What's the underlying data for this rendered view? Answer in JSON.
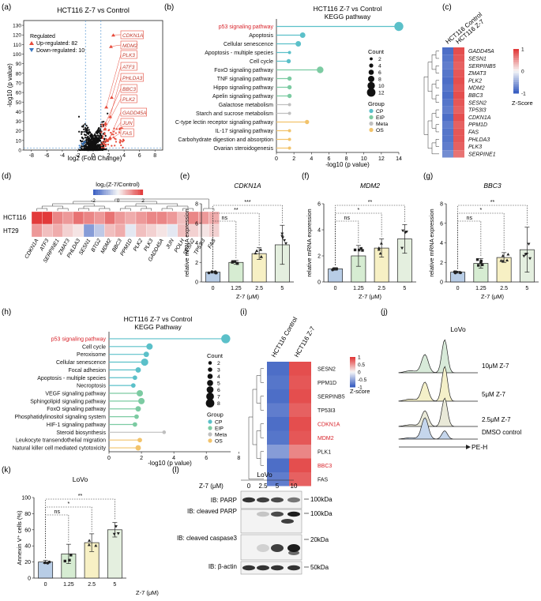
{
  "panel_letters": {
    "a": "(a)",
    "b": "(b)",
    "c": "(c)",
    "d": "(d)",
    "e": "(e)",
    "f": "(f)",
    "g": "(g)",
    "h": "(h)",
    "i": "(i)",
    "j": "(j)",
    "k": "(k)",
    "l": "(l)"
  },
  "colors": {
    "up": "#e74c3c",
    "down": "#3a78c2",
    "CP": "#5bc0c9",
    "EIP": "#7ccba2",
    "Meta": "#bfbfbf",
    "OS": "#f2c36b",
    "red_label": "#d8232a"
  },
  "volcano": {
    "title": "HCT116 Z-7 vs Control",
    "xlabel": "log2 (Fold Change)",
    "ylabel": "-log10 (p value)",
    "legend_title": "Regulated",
    "legend_up": "Up-regulated: 82",
    "legend_down": "Down-regulated: 10",
    "xticks": [
      "-8",
      "-6",
      "-4",
      "-2",
      "0",
      "2",
      "4",
      "6",
      "8"
    ],
    "yticks": [
      "0",
      "10",
      "20",
      "30",
      "40",
      "50",
      "60",
      "70",
      "80",
      "90",
      "100",
      "110",
      "120",
      "130"
    ],
    "genes": [
      "CDKN1A",
      "MDM2",
      "PLK3",
      "ATF3",
      "PHLDA3",
      "BBC3",
      "PLK2",
      "GADD45A",
      "JUN",
      "FAS"
    ]
  },
  "kegg_b": {
    "title": "HCT116 Z-7 vs Control",
    "subtitle": "KEGG pathway",
    "xlabel": "-log10 (p value)",
    "xticks": [
      "0",
      "2",
      "4",
      "6",
      "8",
      "10",
      "12",
      "14"
    ],
    "pathways": [
      "p53 signaling pathway",
      "Apoptosis",
      "Cellular senescence",
      "Apoptosis - multiple species",
      "Cell cycle",
      "FoxO signaling pathway",
      "TNF signaling pathway",
      "Hippo signaling pathway",
      "Apelin signaling pathway",
      "Galactose metabolism",
      "Starch and sucrose metabolism",
      "C-type lectin receptor signaling pathway",
      "IL-17 signaling pathway",
      "Carbohydrate digestion and absorption",
      "Ovarian steroidogenesis"
    ],
    "values": [
      14.0,
      3.0,
      2.5,
      1.5,
      1.4,
      5.0,
      1.5,
      1.5,
      1.5,
      1.5,
      1.5,
      3.5,
      1.5,
      1.5,
      1.5
    ],
    "counts": [
      12,
      6,
      6,
      2,
      4,
      8,
      4,
      4,
      4,
      2,
      2,
      4,
      2,
      2,
      2
    ],
    "groups": [
      "CP",
      "CP",
      "CP",
      "CP",
      "CP",
      "EIP",
      "EIP",
      "EIP",
      "EIP",
      "Meta",
      "Meta",
      "OS",
      "OS",
      "OS",
      "OS"
    ],
    "count_title": "Count",
    "count_items": [
      "2",
      "4",
      "6",
      "8",
      "10",
      "12"
    ],
    "group_title": "Group",
    "group_items": [
      "CP",
      "EIP",
      "Meta",
      "OS"
    ]
  },
  "heat_c": {
    "columns": [
      "HCT116 Control",
      "HCT116 Z-7"
    ],
    "genes": [
      "GADD45A",
      "SESN1",
      "SERPINB5",
      "ZMAT3",
      "PLK2",
      "MDM2",
      "BBC3",
      "SESN2",
      "TP53I3",
      "CDKN1A",
      "PPM1D",
      "FAS",
      "PHLDA3",
      "PLK3",
      "SERPINE1"
    ],
    "scale_ticks": [
      "1",
      "0",
      "-1"
    ],
    "scale_label": "Z-Score"
  },
  "heat_d": {
    "legend_label": "log₂(Z-7/Control)",
    "legend_ticks": [
      "-2",
      "0",
      "2"
    ],
    "rows": [
      "HCT116",
      "HT29"
    ],
    "genes": [
      "CDKN1A",
      "ATF3",
      "SERPINE1",
      "ZMAT3",
      "PHLDA3",
      "SESN1",
      "BTG2",
      "MDM2",
      "BBC3",
      "PPM1D",
      "PLK2",
      "PLK3",
      "GADD45A",
      "JUN",
      "POLH",
      "SESN2",
      "TP53I3",
      "FAS"
    ],
    "hct116": [
      1.2,
      1.0,
      0.6,
      0.5,
      0.7,
      0.6,
      0.5,
      0.7,
      0.5,
      0.4,
      0.5,
      0.6,
      0.6,
      0.5,
      0.3,
      0.6,
      0.5,
      0.4
    ],
    "ht29": [
      0.5,
      0.3,
      0.4,
      0.2,
      0.1,
      -0.6,
      -0.3,
      0.3,
      0.4,
      -0.1,
      0.3,
      0.2,
      0.1,
      -0.1,
      0.3,
      0.2,
      0.1,
      0.2
    ]
  },
  "bar_e": {
    "gene": "CDKN1A",
    "ylabel": "relative mRNA expression",
    "xlabel": "Z-7 (μM)",
    "categories": [
      "0",
      "1.25",
      "2.5",
      "5"
    ],
    "values": [
      1.0,
      2.0,
      2.9,
      3.8
    ],
    "errors": [
      0.1,
      0.2,
      0.6,
      2.0
    ],
    "ylim": [
      0,
      8
    ],
    "yticks": [
      "0",
      "2",
      "4",
      "6",
      "8"
    ],
    "sig": [
      "ns",
      "**",
      "***"
    ]
  },
  "bar_f": {
    "gene": "MDM2",
    "ylabel": "relative mRNA expression",
    "xlabel": "Z-7 (μM)",
    "categories": [
      "0",
      "1.25",
      "2.5",
      "5"
    ],
    "values": [
      1.0,
      2.0,
      2.6,
      3.3
    ],
    "errors": [
      0.1,
      0.8,
      0.7,
      1.1
    ],
    "ylim": [
      0,
      6
    ],
    "yticks": [
      "0",
      "2",
      "4",
      "6"
    ],
    "sig": [
      "ns",
      "*",
      "**"
    ]
  },
  "bar_g": {
    "gene": "BBC3",
    "ylabel": "relative mRNA expression",
    "xlabel": "Z-7 (μM)",
    "categories": [
      "0",
      "1.25",
      "2.5",
      "5"
    ],
    "values": [
      1.0,
      1.9,
      2.5,
      3.3
    ],
    "errors": [
      0.1,
      0.5,
      0.5,
      2.3
    ],
    "ylim": [
      0,
      8
    ],
    "yticks": [
      "0",
      "2",
      "4",
      "6",
      "8"
    ],
    "sig": [
      "ns",
      "*",
      "**"
    ]
  },
  "kegg_h": {
    "title": "HCT116 Z-7 vs Control",
    "subtitle": "KEGG Pathway",
    "xlabel": "-log10 (p value)",
    "xticks": [
      "0",
      "2",
      "4",
      "6",
      "8"
    ],
    "pathways": [
      "p53 signaling pathway",
      "Cell cycle",
      "Peroxisome",
      "Cellular senescence",
      "Focal adhesion",
      "Apoptosis - multiple species",
      "Necroptosis",
      "VEGF signaling pathway",
      "Sphingolipid signaling pathway",
      "FoxO signaling pathway",
      "Phosphatidylinositol signaling system",
      "HIF-1 signaling pathway",
      "Steroid biosynthesis",
      "Leukocyte transendothelial migration",
      "Natural killer cell mediated cytotoxicity"
    ],
    "values": [
      7.2,
      2.5,
      2.3,
      2.2,
      1.8,
      1.6,
      1.5,
      1.9,
      2.0,
      1.8,
      1.7,
      1.6,
      3.4,
      1.9,
      1.8
    ],
    "counts": [
      8,
      5,
      4,
      6,
      4,
      3,
      3,
      5,
      5,
      4,
      3,
      3,
      2,
      3,
      4
    ],
    "groups": [
      "CP",
      "CP",
      "CP",
      "CP",
      "CP",
      "CP",
      "CP",
      "EIP",
      "EIP",
      "EIP",
      "EIP",
      "EIP",
      "Meta",
      "OS",
      "OS"
    ],
    "count_title": "Count",
    "count_items": [
      "2",
      "3",
      "4",
      "5",
      "6",
      "7",
      "8"
    ],
    "group_title": "Group",
    "group_items": [
      "CP",
      "EIP",
      "Meta",
      "OS"
    ]
  },
  "heat_i": {
    "columns": [
      "HCT116 Control",
      "HCT116 Z-7"
    ],
    "genes": [
      "SESN2",
      "PPM1D",
      "SERPINB5",
      "TP53I3",
      "CDKN1A",
      "MDM2",
      "PLK1",
      "BBC3",
      "FAS"
    ],
    "red_genes": [
      "CDKN1A",
      "MDM2",
      "BBC3"
    ],
    "scale_ticks": [
      "1",
      "0.5",
      "0",
      "-0.5",
      "-1"
    ],
    "scale_label": "Z-score"
  },
  "flow_j": {
    "title": "LoVo",
    "labels": [
      "10μM Z-7",
      "5μM Z-7",
      "2.5μM Z-7",
      "DMSO control"
    ],
    "xlabel": "PE-H"
  },
  "bar_k": {
    "title": "LoVo",
    "ylabel": "Annexin V⁺ cells (%)",
    "xlabel": "Z-7 (μM)",
    "categories": [
      "0",
      "1.25",
      "2.5",
      "5"
    ],
    "values": [
      20,
      30,
      44,
      60
    ],
    "errors": [
      2,
      12,
      11,
      9
    ],
    "ylim": [
      0,
      100
    ],
    "yticks": [
      "0",
      "20",
      "40",
      "60",
      "80",
      "100"
    ],
    "sig": [
      "ns",
      "*",
      "**"
    ]
  },
  "blot_l": {
    "title": "LoVo",
    "dose_label": "Z-7 (μM)",
    "doses": [
      "0",
      "2.5",
      "5",
      "10"
    ],
    "rows": [
      "IB: PARP",
      "IB: cleaved PARP",
      "IB: cleaved caspase3",
      "IB: β-actin"
    ],
    "markers": [
      "100kDa",
      "100kDa",
      "20kDa",
      "50kDa"
    ]
  }
}
